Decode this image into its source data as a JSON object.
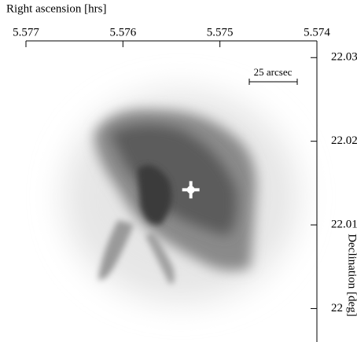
{
  "chart_data": {
    "type": "image",
    "xlabel": "Right ascension [hrs]",
    "ylabel": "Declination [deg]",
    "xlim": [
      5.577,
      5.574
    ],
    "xticks": [
      5.577,
      5.576,
      5.575,
      5.574
    ],
    "ylim": [
      21.996,
      22.032
    ],
    "yticks": [
      22.03,
      22.02,
      22.01,
      22
    ],
    "marker": {
      "x": 5.5753,
      "y": 22.0142,
      "color": "#ffffff"
    },
    "annotation": "25 arcsec"
  }
}
